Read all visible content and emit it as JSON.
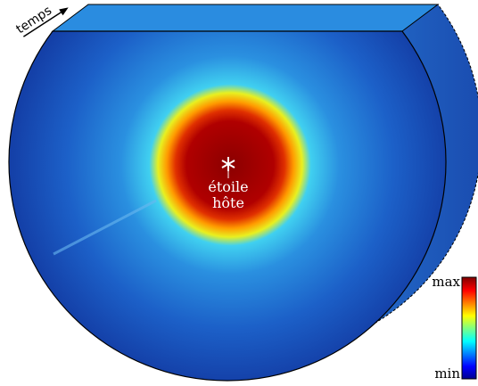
{
  "labels": {
    "time_axis": "temps",
    "star": [
      "étoile",
      "hôte"
    ],
    "colorbar_max": "max",
    "colorbar_min": "min"
  }
}
